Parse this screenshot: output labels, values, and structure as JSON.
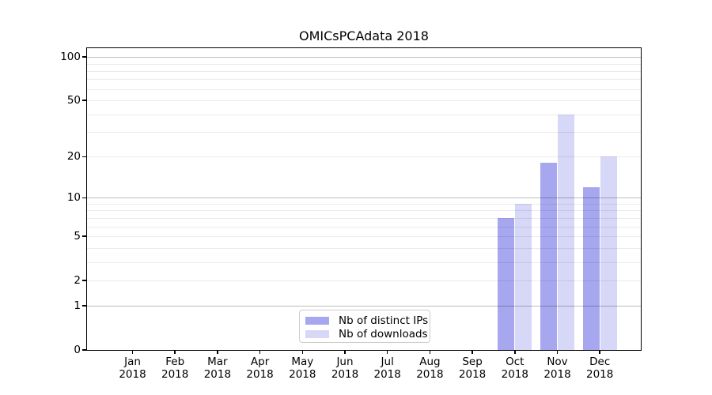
{
  "chart_data": {
    "type": "bar",
    "title": "OMICsPCAdata 2018",
    "xlabel": "",
    "ylabel": "",
    "x_categories": [
      {
        "month": "Jan",
        "year": "2018"
      },
      {
        "month": "Feb",
        "year": "2018"
      },
      {
        "month": "Mar",
        "year": "2018"
      },
      {
        "month": "Apr",
        "year": "2018"
      },
      {
        "month": "May",
        "year": "2018"
      },
      {
        "month": "Jun",
        "year": "2018"
      },
      {
        "month": "Jul",
        "year": "2018"
      },
      {
        "month": "Aug",
        "year": "2018"
      },
      {
        "month": "Sep",
        "year": "2018"
      },
      {
        "month": "Oct",
        "year": "2018"
      },
      {
        "month": "Nov",
        "year": "2018"
      },
      {
        "month": "Dec",
        "year": "2018"
      }
    ],
    "series": [
      {
        "name": "Nb of distinct IPs",
        "color": "#a7a7ef",
        "values": [
          0,
          0,
          0,
          0,
          0,
          0,
          0,
          0,
          0,
          7,
          18,
          12
        ]
      },
      {
        "name": "Nb of downloads",
        "color": "#d7d7f7",
        "values": [
          0,
          0,
          0,
          0,
          0,
          0,
          0,
          0,
          0,
          9,
          40,
          20
        ]
      }
    ],
    "yscale": "log1p",
    "ylim": [
      0,
      115
    ],
    "yticks": [
      0,
      1,
      2,
      5,
      10,
      20,
      50,
      100
    ],
    "major_gridlines": [
      1,
      10,
      100
    ],
    "minor_gridlines": [
      2,
      3,
      4,
      5,
      6,
      7,
      8,
      9,
      20,
      30,
      40,
      50,
      60,
      70,
      80,
      90
    ],
    "grid": true,
    "legend_position": "lower center"
  }
}
